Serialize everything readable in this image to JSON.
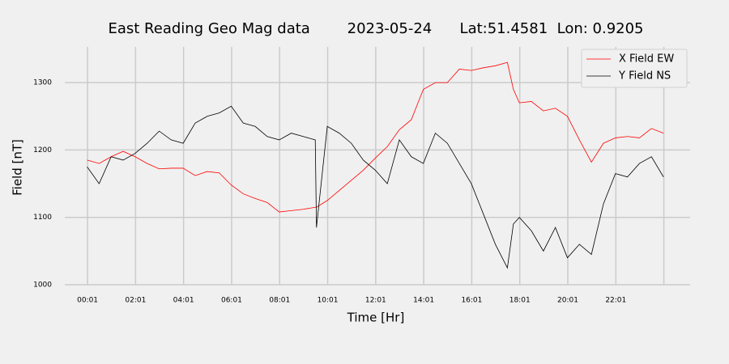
{
  "chart_data": {
    "type": "line",
    "title": "East Reading Geo Mag data        2023-05-24      Lat:51.4581  Lon: 0.9205",
    "xlabel": "Time  [Hr]",
    "ylabel": "Field  [nT]",
    "x": [
      0,
      0.5,
      1,
      1.5,
      2,
      2.5,
      3,
      3.5,
      4,
      4.5,
      5,
      5.5,
      6,
      6.5,
      7,
      7.5,
      8,
      8.5,
      9,
      9.5,
      9.55,
      10,
      10.5,
      11,
      11.5,
      12,
      12.5,
      13,
      13.5,
      14,
      14.5,
      15,
      15.5,
      16,
      16.5,
      17,
      17.5,
      17.75,
      18,
      18.5,
      19,
      19.5,
      20,
      20.5,
      21,
      21.5,
      22,
      22.5,
      23,
      23.5,
      24
    ],
    "series": [
      {
        "name": "X Field EW",
        "color": "#ff0000",
        "values": [
          1185,
          1180,
          1190,
          1198,
          1190,
          1180,
          1172,
          1173,
          1173,
          1162,
          1168,
          1166,
          1148,
          1135,
          1128,
          1122,
          1108,
          1110,
          1112,
          1115,
          1115,
          1125,
          1140,
          1155,
          1170,
          1188,
          1205,
          1230,
          1245,
          1290,
          1300,
          1300,
          1320,
          1318,
          1322,
          1325,
          1330,
          1290,
          1270,
          1272,
          1258,
          1262,
          1250,
          1215,
          1182,
          1210,
          1218,
          1220,
          1218,
          1232,
          1225
        ]
      },
      {
        "name": "Y Field NS",
        "color": "#000000",
        "values": [
          1175,
          1150,
          1190,
          1185,
          1195,
          1210,
          1228,
          1215,
          1210,
          1240,
          1250,
          1255,
          1265,
          1240,
          1235,
          1220,
          1215,
          1225,
          1220,
          1215,
          1085,
          1235,
          1225,
          1210,
          1185,
          1170,
          1150,
          1215,
          1190,
          1180,
          1225,
          1210,
          1180,
          1150,
          1105,
          1060,
          1025,
          1090,
          1100,
          1080,
          1050,
          1085,
          1040,
          1060,
          1045,
          1120,
          1165,
          1160,
          1180,
          1190,
          1160
        ]
      }
    ],
    "xlim": [
      -0.93,
      25.11
    ],
    "xticks": [
      {
        "value": 0.0167,
        "label": "00:01"
      },
      {
        "value": 2.0167,
        "label": "02:01"
      },
      {
        "value": 4.0167,
        "label": "04:01"
      },
      {
        "value": 6.0167,
        "label": "06:01"
      },
      {
        "value": 8.0167,
        "label": "08:01"
      },
      {
        "value": 10.0167,
        "label": "10:01"
      },
      {
        "value": 12.0167,
        "label": "12:01"
      },
      {
        "value": 14.0167,
        "label": "14:01"
      },
      {
        "value": 16.0167,
        "label": "16:01"
      },
      {
        "value": 18.0167,
        "label": "18:01"
      },
      {
        "value": 20.0167,
        "label": "20:01"
      },
      {
        "value": 22.0167,
        "label": "22:01"
      },
      {
        "value": 24.0167,
        "label": null
      }
    ],
    "ylim": [
      1000,
      1353
    ],
    "yticks": [
      1000,
      1100,
      1200,
      1300
    ],
    "grid": true,
    "legend": "upper right"
  }
}
